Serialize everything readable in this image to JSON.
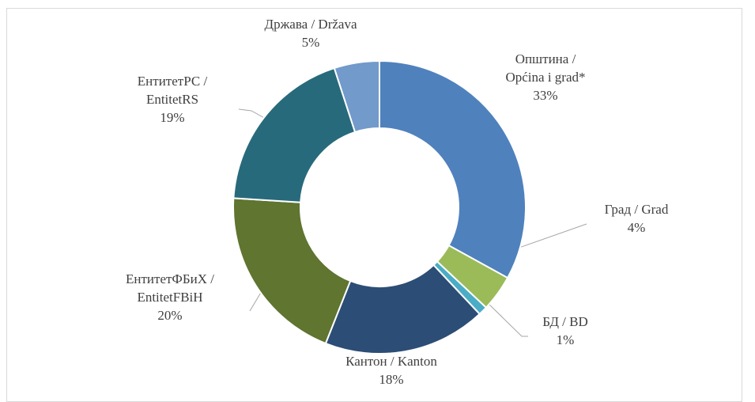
{
  "chart_data": {
    "type": "donut",
    "categories": [
      "Општина /\nOpćina i grad*",
      "Град / Grad",
      "БД / BD",
      "Кантон / Kanton",
      "ЕнтитетФБиХ /\nEntitetFBiH",
      "ЕнтитетРС /\nEntitetRS",
      "Држава / Država"
    ],
    "values": [
      33,
      4,
      1,
      18,
      20,
      19,
      5
    ],
    "value_labels": [
      "33%",
      "4%",
      "1%",
      "18%",
      "20%",
      "19%",
      "5%"
    ],
    "colors": [
      "#4f81bd",
      "#9bbb59",
      "#4bacc6",
      "#2c4d75",
      "#5f7530",
      "#276a7c",
      "#729aca"
    ]
  }
}
